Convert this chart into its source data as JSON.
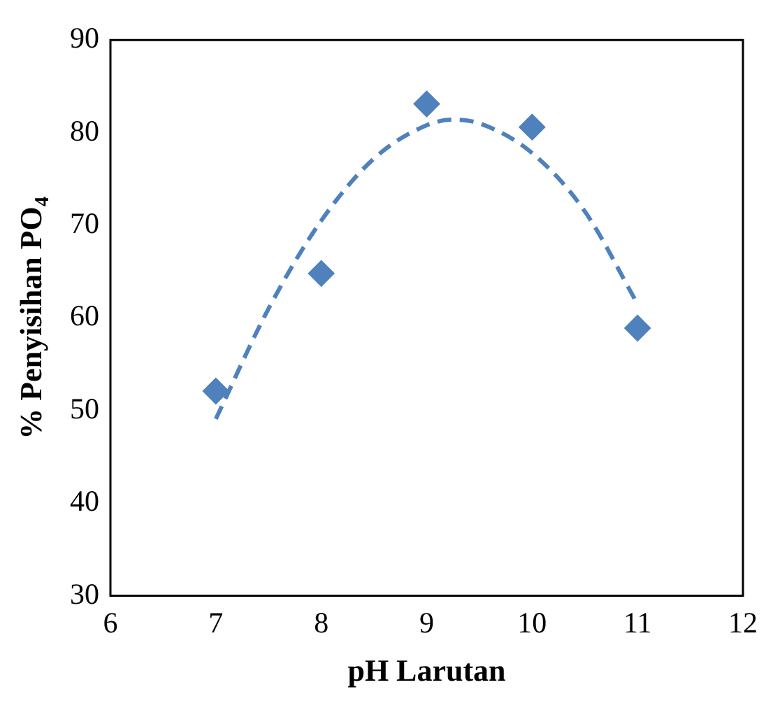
{
  "chart_data": {
    "type": "scatter",
    "xlabel": "pH Larutan",
    "ylabel": "% Penyisihan PO$_{4}$",
    "xlim": [
      6,
      12
    ],
    "ylim": [
      30,
      90
    ],
    "xticks": [
      6,
      7,
      8,
      9,
      10,
      11,
      12
    ],
    "yticks": [
      30,
      40,
      50,
      60,
      70,
      80,
      90
    ],
    "grid": false,
    "legend": false,
    "series": [
      {
        "color": "#4f81bd",
        "marker": "diamond",
        "x": [
          7,
          8,
          9,
          10,
          11
        ],
        "values": [
          52.1,
          64.8,
          83.1,
          80.6,
          58.9
        ]
      },
      {
        "type": "line",
        "color": "#4f81bd",
        "marker": "none",
        "line_style": "dashed",
        "x": [
          7,
          7.5,
          8,
          8.5,
          9,
          9.25,
          9.5,
          10,
          10.5,
          11
        ],
        "values": [
          49.1,
          61,
          70.5,
          77.2,
          80.8,
          81.4,
          81,
          77.8,
          71.5,
          61.5
        ]
      }
    ]
  }
}
